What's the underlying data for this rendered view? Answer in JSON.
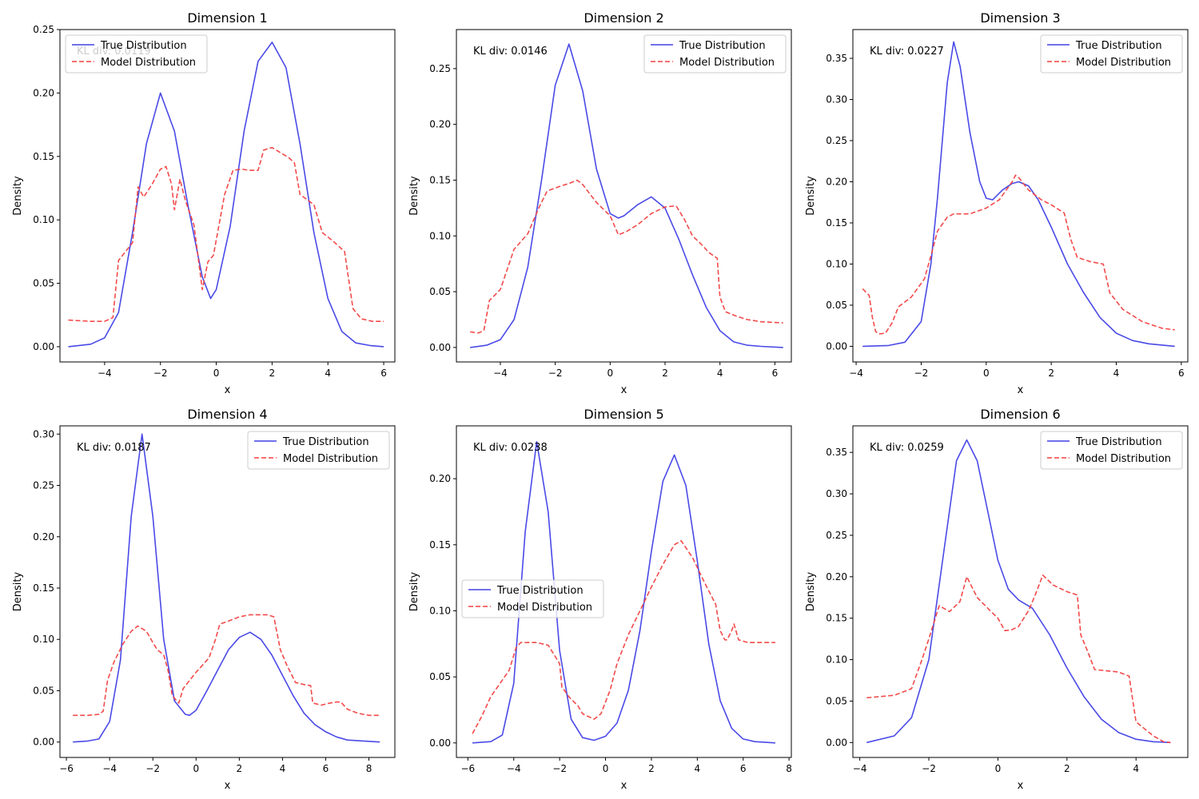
{
  "colors": {
    "true_line": "#4040e6",
    "model_line": "#f24040",
    "axes": "#000000",
    "background": "#ffffff"
  },
  "chart_data": [
    {
      "type": "line",
      "title": "Dimension 1",
      "xlabel": "x",
      "ylabel": "Density",
      "xlim": [
        -5.6,
        6.4
      ],
      "ylim": [
        -0.012,
        0.25
      ],
      "xticks": [
        -4,
        -2,
        0,
        2,
        4,
        6
      ],
      "xtick_labels": [
        "−4",
        "−2",
        "0",
        "2",
        "4",
        "6"
      ],
      "yticks": [
        0.0,
        0.05,
        0.1,
        0.15,
        0.2,
        0.25
      ],
      "ytick_labels": [
        "0.00",
        "0.05",
        "0.10",
        "0.15",
        "0.20",
        "0.25"
      ],
      "kl_text": "KL div: 0.0119",
      "legend": "upper-left",
      "series": [
        {
          "name": "True Distribution",
          "style": "solid",
          "x": [
            -5.3,
            -4.5,
            -4,
            -3.5,
            -3,
            -2.5,
            -2,
            -1.5,
            -1,
            -0.5,
            -0.2,
            0,
            0.5,
            1,
            1.5,
            2,
            2.5,
            3,
            3.5,
            4,
            4.5,
            5,
            5.5,
            6
          ],
          "y": [
            0.0,
            0.002,
            0.007,
            0.027,
            0.09,
            0.16,
            0.2,
            0.17,
            0.11,
            0.055,
            0.038,
            0.045,
            0.095,
            0.17,
            0.225,
            0.24,
            0.22,
            0.16,
            0.09,
            0.038,
            0.012,
            0.003,
            0.001,
            0.0
          ]
        },
        {
          "name": "Model Distribution",
          "style": "dashed",
          "x": [
            -5.3,
            -4.5,
            -4,
            -3.7,
            -3.5,
            -3,
            -2.8,
            -2.6,
            -2.3,
            -2,
            -1.8,
            -1.6,
            -1.5,
            -1.3,
            -1.1,
            -0.8,
            -0.5,
            -0.3,
            -0.1,
            0.3,
            0.6,
            0.9,
            1.2,
            1.5,
            1.7,
            2,
            2.3,
            2.6,
            2.8,
            3,
            3.5,
            3.8,
            4.2,
            4.6,
            4.9,
            5.2,
            5.6,
            6
          ],
          "y": [
            0.021,
            0.02,
            0.02,
            0.023,
            0.068,
            0.082,
            0.126,
            0.118,
            0.128,
            0.14,
            0.142,
            0.128,
            0.108,
            0.132,
            0.115,
            0.096,
            0.045,
            0.067,
            0.072,
            0.12,
            0.139,
            0.14,
            0.139,
            0.139,
            0.155,
            0.157,
            0.153,
            0.149,
            0.145,
            0.12,
            0.112,
            0.09,
            0.083,
            0.075,
            0.03,
            0.022,
            0.02,
            0.02
          ]
        }
      ]
    },
    {
      "type": "line",
      "title": "Dimension 2",
      "xlabel": "x",
      "ylabel": "Density",
      "xlim": [
        -5.6,
        6.6
      ],
      "ylim": [
        -0.013,
        0.285
      ],
      "xticks": [
        -4,
        -2,
        0,
        2,
        4,
        6
      ],
      "xtick_labels": [
        "−4",
        "−2",
        "0",
        "2",
        "4",
        "6"
      ],
      "yticks": [
        0.0,
        0.05,
        0.1,
        0.15,
        0.2,
        0.25
      ],
      "ytick_labels": [
        "0.00",
        "0.05",
        "0.10",
        "0.15",
        "0.20",
        "0.25"
      ],
      "kl_text": "KL div: 0.0146",
      "legend": "upper-right",
      "series": [
        {
          "name": "True Distribution",
          "style": "solid",
          "x": [
            -5.1,
            -4.5,
            -4,
            -3.5,
            -3,
            -2.5,
            -2,
            -1.5,
            -1,
            -0.5,
            0,
            0.3,
            0.5,
            1,
            1.5,
            2,
            2.5,
            3,
            3.5,
            4,
            4.5,
            5,
            5.5,
            6.3
          ],
          "y": [
            0.0,
            0.002,
            0.007,
            0.025,
            0.072,
            0.15,
            0.235,
            0.272,
            0.23,
            0.16,
            0.12,
            0.116,
            0.118,
            0.128,
            0.135,
            0.125,
            0.097,
            0.065,
            0.036,
            0.015,
            0.005,
            0.002,
            0.001,
            0.0
          ]
        },
        {
          "name": "Model Distribution",
          "style": "dashed",
          "x": [
            -5.1,
            -4.8,
            -4.6,
            -4.4,
            -4,
            -3.5,
            -3,
            -2.6,
            -2.3,
            -2,
            -1.5,
            -1.2,
            -1,
            -0.5,
            0,
            0.3,
            0.6,
            1,
            1.5,
            2,
            2.4,
            2.7,
            3,
            3.3,
            3.6,
            3.9,
            4,
            4.2,
            4.6,
            5,
            5.5,
            6.3
          ],
          "y": [
            0.014,
            0.013,
            0.015,
            0.042,
            0.052,
            0.088,
            0.102,
            0.125,
            0.14,
            0.143,
            0.147,
            0.15,
            0.146,
            0.13,
            0.118,
            0.101,
            0.104,
            0.11,
            0.12,
            0.126,
            0.127,
            0.115,
            0.1,
            0.093,
            0.085,
            0.08,
            0.045,
            0.032,
            0.028,
            0.025,
            0.023,
            0.022
          ]
        }
      ]
    },
    {
      "type": "line",
      "title": "Dimension 3",
      "xlabel": "x",
      "ylabel": "Density",
      "xlim": [
        -4.1,
        6.2
      ],
      "ylim": [
        -0.019,
        0.385
      ],
      "xticks": [
        -4,
        -2,
        0,
        2,
        4,
        6
      ],
      "xtick_labels": [
        "−4",
        "−2",
        "0",
        "2",
        "4",
        "6"
      ],
      "yticks": [
        0.0,
        0.05,
        0.1,
        0.15,
        0.2,
        0.25,
        0.3,
        0.35
      ],
      "ytick_labels": [
        "0.00",
        "0.05",
        "0.10",
        "0.15",
        "0.20",
        "0.25",
        "0.30",
        "0.35"
      ],
      "kl_text": "KL div: 0.0227",
      "legend": "upper-right",
      "series": [
        {
          "name": "True Distribution",
          "style": "solid",
          "x": [
            -3.8,
            -3,
            -2.5,
            -2,
            -1.7,
            -1.5,
            -1.2,
            -1,
            -0.8,
            -0.5,
            -0.2,
            0,
            0.2,
            0.5,
            0.8,
            1,
            1.3,
            1.6,
            2,
            2.5,
            3,
            3.5,
            4,
            4.5,
            5,
            5.8
          ],
          "y": [
            0.0,
            0.001,
            0.005,
            0.03,
            0.1,
            0.18,
            0.32,
            0.37,
            0.34,
            0.26,
            0.2,
            0.18,
            0.178,
            0.19,
            0.198,
            0.2,
            0.195,
            0.178,
            0.145,
            0.1,
            0.065,
            0.035,
            0.016,
            0.007,
            0.003,
            0.0
          ]
        },
        {
          "name": "Model Distribution",
          "style": "dashed",
          "x": [
            -3.8,
            -3.6,
            -3.5,
            -3.4,
            -3.3,
            -3.1,
            -2.9,
            -2.7,
            -2.3,
            -1.9,
            -1.7,
            -1.5,
            -1.2,
            -1,
            -0.5,
            0,
            0.4,
            0.8,
            0.9,
            1,
            1.3,
            1.7,
            2,
            2.4,
            2.6,
            2.8,
            3.2,
            3.6,
            3.8,
            4.2,
            4.8,
            5.4,
            5.8
          ],
          "y": [
            0.07,
            0.062,
            0.035,
            0.018,
            0.015,
            0.016,
            0.028,
            0.048,
            0.06,
            0.082,
            0.11,
            0.14,
            0.157,
            0.161,
            0.161,
            0.168,
            0.178,
            0.2,
            0.208,
            0.205,
            0.19,
            0.178,
            0.172,
            0.162,
            0.13,
            0.108,
            0.103,
            0.1,
            0.065,
            0.045,
            0.03,
            0.022,
            0.02
          ]
        }
      ]
    },
    {
      "type": "line",
      "title": "Dimension 4",
      "xlabel": "x",
      "ylabel": "Density",
      "xlim": [
        -6.3,
        9.2
      ],
      "ylim": [
        -0.015,
        0.308
      ],
      "xticks": [
        -6,
        -4,
        -2,
        0,
        2,
        4,
        6,
        8
      ],
      "xtick_labels": [
        "−6",
        "−4",
        "−2",
        "0",
        "2",
        "4",
        "6",
        "8"
      ],
      "yticks": [
        0.0,
        0.05,
        0.1,
        0.15,
        0.2,
        0.25,
        0.3
      ],
      "ytick_labels": [
        "0.00",
        "0.05",
        "0.10",
        "0.15",
        "0.20",
        "0.25",
        "0.30"
      ],
      "kl_text": "KL div: 0.0187",
      "legend": "upper-right",
      "series": [
        {
          "name": "True Distribution",
          "style": "solid",
          "x": [
            -5.7,
            -5,
            -4.5,
            -4,
            -3.5,
            -3,
            -2.5,
            -2,
            -1.5,
            -1,
            -0.5,
            -0.3,
            0,
            0.5,
            1,
            1.5,
            2,
            2.5,
            3,
            3.5,
            4,
            4.5,
            5,
            5.5,
            6,
            6.5,
            7,
            8.5
          ],
          "y": [
            0.0,
            0.001,
            0.003,
            0.02,
            0.08,
            0.22,
            0.3,
            0.22,
            0.1,
            0.04,
            0.027,
            0.026,
            0.031,
            0.05,
            0.07,
            0.09,
            0.102,
            0.107,
            0.1,
            0.085,
            0.065,
            0.045,
            0.028,
            0.017,
            0.01,
            0.005,
            0.002,
            0.0
          ]
        },
        {
          "name": "Model Distribution",
          "style": "dashed",
          "x": [
            -5.7,
            -5,
            -4.5,
            -4.3,
            -4.1,
            -3.8,
            -3.4,
            -3,
            -2.7,
            -2.3,
            -2,
            -1.8,
            -1.5,
            -1.3,
            -1.1,
            -0.8,
            -0.6,
            -0.3,
            0,
            0.6,
            0.9,
            1.1,
            1.4,
            2,
            2.5,
            3,
            3.3,
            3.6,
            3.9,
            4.2,
            4.6,
            5,
            5.3,
            5.4,
            5.8,
            6.2,
            6.5,
            6.7,
            7,
            7.5,
            8,
            8.5
          ],
          "y": [
            0.026,
            0.026,
            0.027,
            0.03,
            0.06,
            0.078,
            0.095,
            0.108,
            0.113,
            0.108,
            0.097,
            0.09,
            0.085,
            0.07,
            0.045,
            0.038,
            0.052,
            0.06,
            0.068,
            0.082,
            0.1,
            0.115,
            0.117,
            0.122,
            0.124,
            0.124,
            0.124,
            0.122,
            0.09,
            0.075,
            0.058,
            0.056,
            0.055,
            0.038,
            0.036,
            0.038,
            0.039,
            0.039,
            0.032,
            0.028,
            0.026,
            0.026
          ]
        }
      ]
    },
    {
      "type": "line",
      "title": "Dimension 5",
      "xlabel": "x",
      "ylabel": "Density",
      "xlim": [
        -6.5,
        8.1
      ],
      "ylim": [
        -0.011,
        0.24
      ],
      "xticks": [
        -6,
        -4,
        -2,
        0,
        2,
        4,
        6,
        8
      ],
      "xtick_labels": [
        "−6",
        "−4",
        "−2",
        "0",
        "2",
        "4",
        "6",
        "8"
      ],
      "yticks": [
        0.0,
        0.05,
        0.1,
        0.15,
        0.2
      ],
      "ytick_labels": [
        "0.00",
        "0.05",
        "0.10",
        "0.15",
        "0.20"
      ],
      "kl_text": "KL div: 0.0238",
      "legend": "center-left",
      "series": [
        {
          "name": "True Distribution",
          "style": "solid",
          "x": [
            -5.8,
            -5,
            -4.5,
            -4,
            -3.5,
            -3,
            -2.5,
            -2,
            -1.5,
            -1,
            -0.5,
            0,
            0.5,
            1,
            1.5,
            2,
            2.5,
            3,
            3.5,
            4,
            4.5,
            5,
            5.5,
            6,
            6.5,
            7.4
          ],
          "y": [
            0.0,
            0.001,
            0.006,
            0.045,
            0.16,
            0.228,
            0.175,
            0.07,
            0.018,
            0.004,
            0.002,
            0.005,
            0.015,
            0.04,
            0.085,
            0.145,
            0.198,
            0.218,
            0.195,
            0.138,
            0.075,
            0.032,
            0.011,
            0.003,
            0.001,
            0.0
          ]
        },
        {
          "name": "Model Distribution",
          "style": "dashed",
          "x": [
            -5.8,
            -5.4,
            -5,
            -4.6,
            -4.2,
            -3.9,
            -3.7,
            -3.5,
            -3,
            -2.5,
            -2,
            -1.9,
            -1.8,
            -1.6,
            -1.2,
            -1,
            -0.5,
            -0.2,
            0.2,
            0.5,
            1,
            1.5,
            2,
            2.5,
            3,
            3.3,
            3.8,
            4.3,
            4.8,
            5,
            5.2,
            5.3,
            5.5,
            5.6,
            5.8,
            6.2,
            7,
            7.4
          ],
          "y": [
            0.007,
            0.02,
            0.035,
            0.045,
            0.055,
            0.072,
            0.076,
            0.076,
            0.076,
            0.074,
            0.06,
            0.042,
            0.04,
            0.035,
            0.028,
            0.022,
            0.018,
            0.022,
            0.04,
            0.06,
            0.082,
            0.1,
            0.118,
            0.135,
            0.15,
            0.153,
            0.14,
            0.122,
            0.105,
            0.085,
            0.078,
            0.078,
            0.085,
            0.09,
            0.078,
            0.076,
            0.076,
            0.076
          ]
        }
      ]
    },
    {
      "type": "line",
      "title": "Dimension 6",
      "xlabel": "x",
      "ylabel": "Density",
      "xlim": [
        -4.2,
        5.5
      ],
      "ylim": [
        -0.018,
        0.382
      ],
      "xticks": [
        -4,
        -2,
        0,
        2,
        4
      ],
      "xtick_labels": [
        "−4",
        "−2",
        "0",
        "2",
        "4"
      ],
      "yticks": [
        0.0,
        0.05,
        0.1,
        0.15,
        0.2,
        0.25,
        0.3,
        0.35
      ],
      "ytick_labels": [
        "0.00",
        "0.05",
        "0.10",
        "0.15",
        "0.20",
        "0.25",
        "0.30",
        "0.35"
      ],
      "kl_text": "KL div: 0.0259",
      "legend": "upper-right",
      "series": [
        {
          "name": "True Distribution",
          "style": "solid",
          "x": [
            -3.8,
            -3,
            -2.5,
            -2,
            -1.5,
            -1.2,
            -0.9,
            -0.6,
            -0.3,
            0,
            0.3,
            0.6,
            1,
            1.5,
            2,
            2.5,
            3,
            3.5,
            4,
            4.5,
            5
          ],
          "y": [
            0.0,
            0.008,
            0.03,
            0.1,
            0.25,
            0.34,
            0.365,
            0.34,
            0.28,
            0.22,
            0.185,
            0.172,
            0.162,
            0.13,
            0.09,
            0.055,
            0.028,
            0.012,
            0.004,
            0.001,
            0.0
          ]
        },
        {
          "name": "Model Distribution",
          "style": "dashed",
          "x": [
            -3.8,
            -3,
            -2.5,
            -2.2,
            -2,
            -1.7,
            -1.4,
            -1.1,
            -0.9,
            -0.6,
            -0.2,
            0,
            0.2,
            0.4,
            0.6,
            0.9,
            1.1,
            1.3,
            1.6,
            2,
            2.3,
            2.4,
            2.6,
            2.8,
            3.5,
            3.8,
            4,
            4.5,
            4.8,
            5
          ],
          "y": [
            0.054,
            0.057,
            0.065,
            0.1,
            0.125,
            0.165,
            0.158,
            0.17,
            0.2,
            0.175,
            0.158,
            0.15,
            0.135,
            0.136,
            0.14,
            0.16,
            0.18,
            0.202,
            0.19,
            0.182,
            0.178,
            0.13,
            0.11,
            0.088,
            0.085,
            0.08,
            0.025,
            0.008,
            0.001,
            0.0
          ]
        }
      ]
    }
  ]
}
